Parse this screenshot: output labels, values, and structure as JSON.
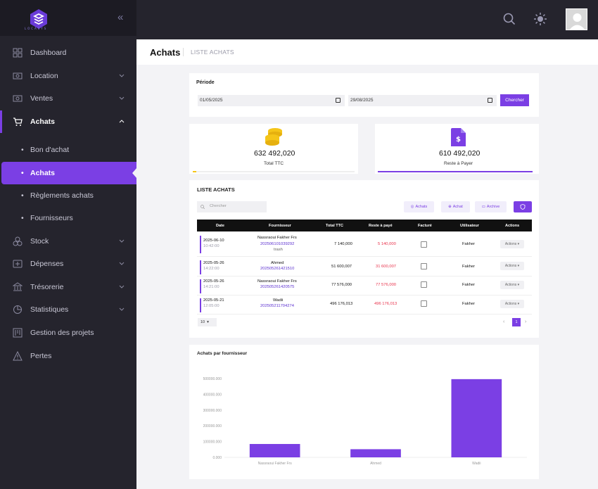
{
  "brand": {
    "name": "LOCASYS"
  },
  "sidebar": {
    "items": [
      {
        "label": "Dashboard"
      },
      {
        "label": "Location"
      },
      {
        "label": "Ventes"
      },
      {
        "label": "Achats"
      },
      {
        "label": "Stock"
      },
      {
        "label": "Dépenses"
      },
      {
        "label": "Trésorerie"
      },
      {
        "label": "Statistiques"
      },
      {
        "label": "Gestion des projets"
      },
      {
        "label": "Pertes"
      }
    ],
    "sub_items": [
      {
        "label": "Bon d'achat"
      },
      {
        "label": "Achats"
      },
      {
        "label": "Règlements achats"
      },
      {
        "label": "Fournisseurs"
      }
    ]
  },
  "header": {
    "title": "Achats",
    "breadcrumb": "LISTE ACHATS"
  },
  "period": {
    "label": "Période",
    "start": "01/05/2025",
    "end": "29/08/2025",
    "search_label": "Chercher"
  },
  "kpis": {
    "total": {
      "value": "632 492,020",
      "label": "Total TTC",
      "progress": 0.02
    },
    "remaining": {
      "value": "610 492,020",
      "label": "Reste à Payer",
      "progress": 1.0
    }
  },
  "list": {
    "title": "LISTE ACHATS",
    "search_placeholder": "Chercher",
    "buttons": {
      "achats": "Achats",
      "achat": "Achat",
      "archive": "Archive"
    },
    "columns": [
      "Date",
      "Fournisseur",
      "Total TTC",
      "Reste à payé",
      "Facturé",
      "Utilisateur",
      "Actions"
    ],
    "rows": [
      {
        "date": "2025-06-10",
        "time": "10:42:00",
        "supplier": "Nassraoui Fakher Frs",
        "ref": "202506101039292",
        "note": "trash",
        "total": "7 140,000",
        "rest": "5 140,000",
        "user": "Fakher",
        "action": "Actions"
      },
      {
        "date": "2025-05-26",
        "time": "14:22:00",
        "supplier": "Ahmed",
        "ref": "202505261421510",
        "note": "",
        "total": "51 600,007",
        "rest": "31 600,007",
        "user": "Fakher",
        "action": "Actions"
      },
      {
        "date": "2025-05-26",
        "time": "14:21:00",
        "supplier": "Nassraoui Fakher Frs",
        "ref": "202505261420575",
        "note": "",
        "total": "77 576,000",
        "rest": "77 576,000",
        "user": "Fakher",
        "action": "Actions"
      },
      {
        "date": "2025-05-21",
        "time": "12:05:00",
        "supplier": "Wadii",
        "ref": "202505211704274",
        "note": "",
        "total": "496 176,013",
        "rest": "496 176,013",
        "user": "Fakher",
        "action": "Actions"
      }
    ],
    "page_size": "10",
    "current_page": "1"
  },
  "chart_data": {
    "type": "bar",
    "title": "Achats par fournisseur",
    "categories": [
      "Nassraoui Fakher Frs",
      "Ahmed",
      "Wadii"
    ],
    "values": [
      84716,
      51600,
      496176
    ],
    "ylim": [
      0,
      500000
    ],
    "yticks": [
      "500000.000",
      "400000.000",
      "300000.000",
      "200000.000",
      "100000.000",
      "0.000"
    ],
    "color": "#7b3fe4"
  },
  "colors": {
    "accent": "#7b3fe4",
    "sidebar": "#25242d",
    "danger": "#e8324b"
  }
}
